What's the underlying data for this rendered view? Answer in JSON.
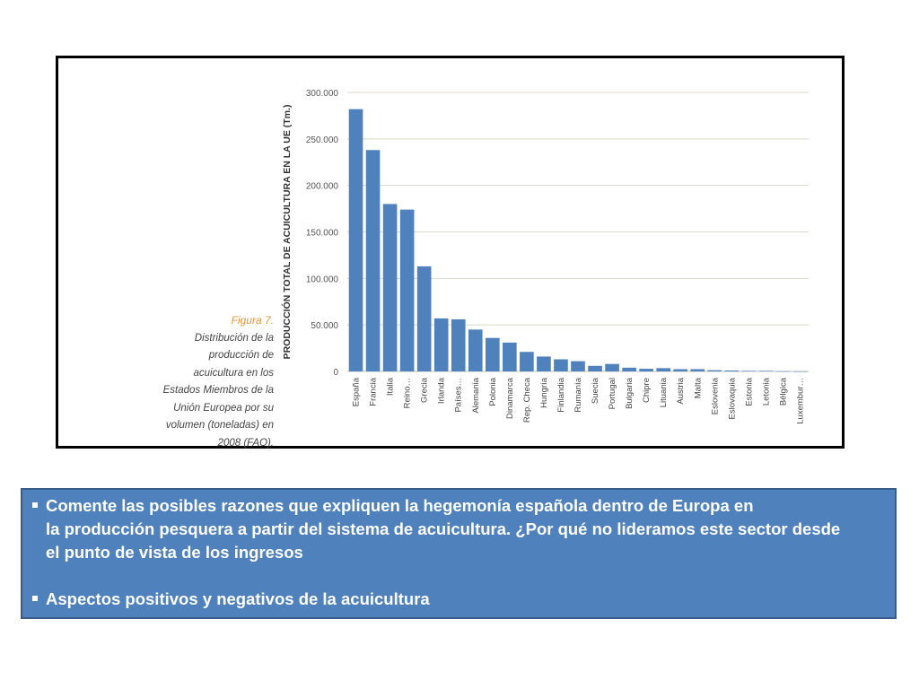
{
  "caption": {
    "figure_label": "Figura 7.",
    "lines": [
      "Distribución de la",
      "producción de",
      "acuicultura en los",
      "Estados Miembros de la",
      "Unión Europea por su",
      "volumen (toneladas) en",
      "2008 (FAO)."
    ]
  },
  "chart_data": {
    "type": "bar",
    "ylabel": "PRODUCCIÓN TOTAL DE ACUICULTURA EN LA UE (Tm.)",
    "ylim": [
      0,
      300000
    ],
    "yticks": [
      0,
      50000,
      100000,
      150000,
      200000,
      250000,
      300000
    ],
    "ytick_labels": [
      "0",
      "50.000",
      "100.000",
      "150.000",
      "200.000",
      "250.000",
      "300.000"
    ],
    "grid": true,
    "bar_color": "#4f81bd",
    "categories": [
      "España",
      "Francia",
      "Italia",
      "Reino…",
      "Grecia",
      "Irlanda",
      "Países…",
      "Alemania",
      "Polonia",
      "Dinamarca",
      "Rep. Checa",
      "Hungría",
      "Finlandia",
      "Rumanía",
      "Suecia",
      "Portugal",
      "Bulgaria",
      "Chipre",
      "Lituania",
      "Austria",
      "Malta",
      "Eslovenia",
      "Eslovaquia",
      "Estonia",
      "Letonia",
      "Bélgica",
      "Luxembur…"
    ],
    "values": [
      282000,
      238000,
      180000,
      174000,
      113000,
      57000,
      56000,
      45000,
      36000,
      31000,
      21000,
      16000,
      13000,
      11000,
      6000,
      8000,
      4000,
      2800,
      3500,
      2400,
      2400,
      1300,
      1000,
      600,
      600,
      150,
      50
    ]
  },
  "question_box": {
    "bullet1_line1": "Comente las posibles razones que expliquen la hegemonía española dentro de Europa en",
    "bullet1_line2": "la producción pesquera a partir del sistema de acuicultura. ¿Por qué no lideramos este sector desde",
    "bullet1_line3": "el punto de vista de los ingresos",
    "bullet2": "Aspectos positivos y negativos de la acuicultura",
    "background": "#4f81bd"
  }
}
